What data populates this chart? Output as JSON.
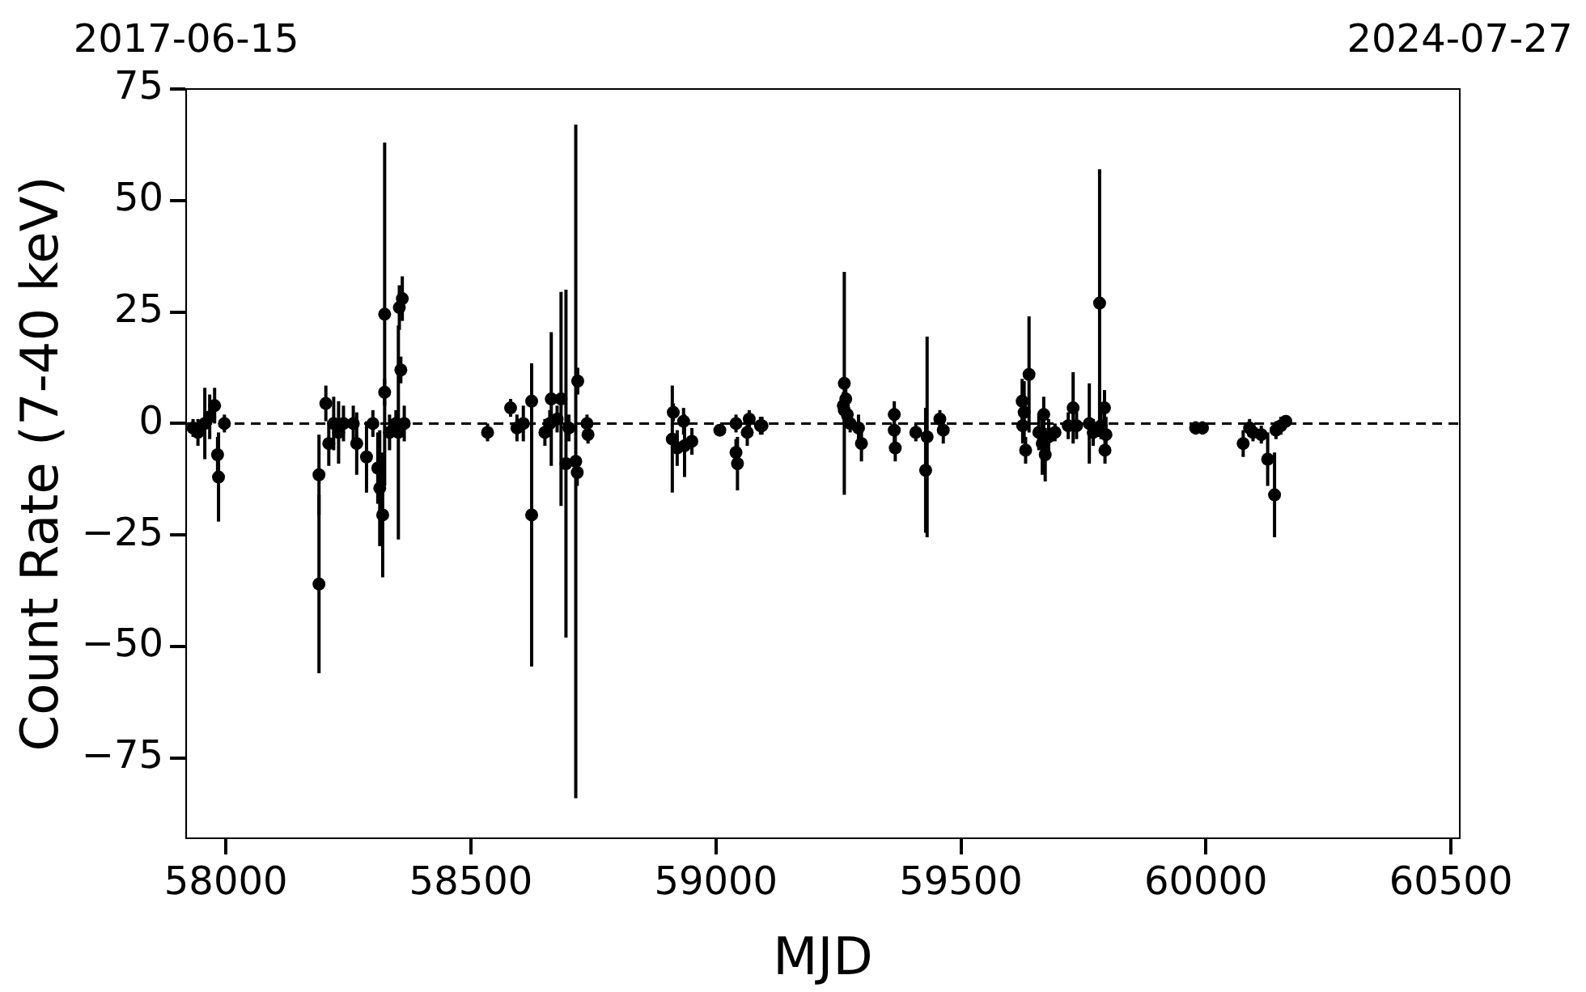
{
  "chart_data": {
    "type": "scatter",
    "xlabel": "MJD",
    "ylabel": "Count Rate (7-40 keV)",
    "marker": "circle",
    "grid": false,
    "legend": false,
    "xlim": [
      57919,
      60518
    ],
    "xticks": [
      58000,
      58500,
      59000,
      59500,
      60000,
      60500
    ],
    "ylim": [
      -93,
      75
    ],
    "yticks": [
      -75,
      -50,
      -25,
      0,
      25,
      50,
      75
    ],
    "annotations": [
      "2017-06-15",
      "2024-07-27"
    ],
    "ref_lines": [
      {
        "axis": "y",
        "value": 0,
        "color": "#000000",
        "line_style": "dashed"
      }
    ],
    "series": [
      {
        "color": "#000000",
        "x": [
          57933,
          57943,
          57957,
          57967,
          57977,
          57983,
          57985,
          57997,
          58190,
          58190,
          58204,
          58210,
          58220,
          58230,
          58240,
          58260,
          58267,
          58287,
          58300,
          58310,
          58314,
          58320,
          58324,
          58324,
          58334,
          58347,
          58354,
          58352,
          58360,
          58357,
          58364,
          58534,
          58581,
          58594,
          58607,
          58624,
          58624,
          58651,
          58661,
          58664,
          58676,
          58684,
          58694,
          58700,
          58714,
          58718,
          58717,
          58737,
          58739,
          58911,
          58913,
          58921,
          58934,
          58936,
          58951,
          59008,
          59041,
          59041,
          59044,
          59064,
          59068,
          59091,
          59094,
          59262,
          59265,
          59262,
          59268,
          59260,
          59274,
          59291,
          59297,
          59364,
          59364,
          59366,
          59408,
          59431,
          59428,
          59457,
          59464,
          59625,
          59629,
          59626,
          59632,
          59639,
          59659,
          59666,
          59669,
          59672,
          59679,
          59692,
          59719,
          59729,
          59736,
          59762,
          59770,
          59783,
          59786,
          59793,
          59794,
          59796,
          59979,
          59993,
          60076,
          60089,
          60096,
          60113,
          60126,
          60140,
          60143,
          60153,
          60163
        ],
        "values": [
          -1,
          -2,
          0,
          1.5,
          4,
          -7,
          -12,
          0,
          -36,
          -11.5,
          4.5,
          -4.5,
          0,
          -2,
          0,
          0,
          -4.5,
          -7.5,
          0,
          -10,
          -14.5,
          -20.5,
          7,
          24.5,
          -2,
          0,
          26,
          -2,
          28,
          12,
          0,
          -2,
          3.5,
          -1,
          0,
          5,
          -20.5,
          -2,
          0,
          5.5,
          1,
          5.5,
          -9,
          -1,
          -8.5,
          9.5,
          -11,
          0,
          -2.5,
          -3.5,
          2.5,
          -5.5,
          0.5,
          -5,
          -4,
          -1.5,
          0,
          -6.5,
          -9,
          -2,
          1,
          -0.5,
          -0.5,
          9,
          5.5,
          3,
          2,
          4,
          0,
          -1,
          -4.5,
          2,
          -1.5,
          -5.5,
          -2,
          -3,
          -10.5,
          1,
          -1.5,
          5,
          2.5,
          -0.5,
          -6,
          11,
          -2,
          -4.5,
          2,
          -7,
          -3,
          -2,
          -0.5,
          3.5,
          -0.5,
          0,
          -2,
          27,
          -0.5,
          3.5,
          -6,
          -2.5,
          -1,
          -1,
          -4.5,
          -1,
          -2,
          -2.5,
          -8,
          -16,
          -1.5,
          -0.5,
          0.5
        ],
        "errors": [
          2,
          3,
          8,
          5,
          4,
          4,
          10,
          2,
          20,
          9,
          4,
          5,
          6,
          7,
          4,
          4,
          7,
          8,
          3,
          8,
          13,
          14,
          3,
          38.5,
          4,
          3,
          5,
          24,
          5,
          3,
          4,
          2,
          2,
          3,
          4,
          8,
          34,
          3,
          3,
          15,
          3,
          24,
          39,
          3,
          75.5,
          3,
          3,
          2,
          2,
          12,
          2,
          4,
          3,
          7,
          3,
          1,
          2,
          3,
          6,
          3,
          2,
          2,
          2,
          25,
          3,
          3,
          3,
          3,
          2,
          3,
          4,
          3,
          3,
          3,
          2,
          22.5,
          14,
          2,
          3,
          5,
          7,
          4,
          3,
          13,
          4,
          7,
          4,
          6,
          4,
          2,
          3,
          8,
          3,
          9,
          3,
          30,
          3,
          4,
          3,
          4,
          1.5,
          1.5,
          3,
          2,
          2,
          2,
          6,
          9.5,
          2,
          2,
          1
        ]
      }
    ]
  }
}
